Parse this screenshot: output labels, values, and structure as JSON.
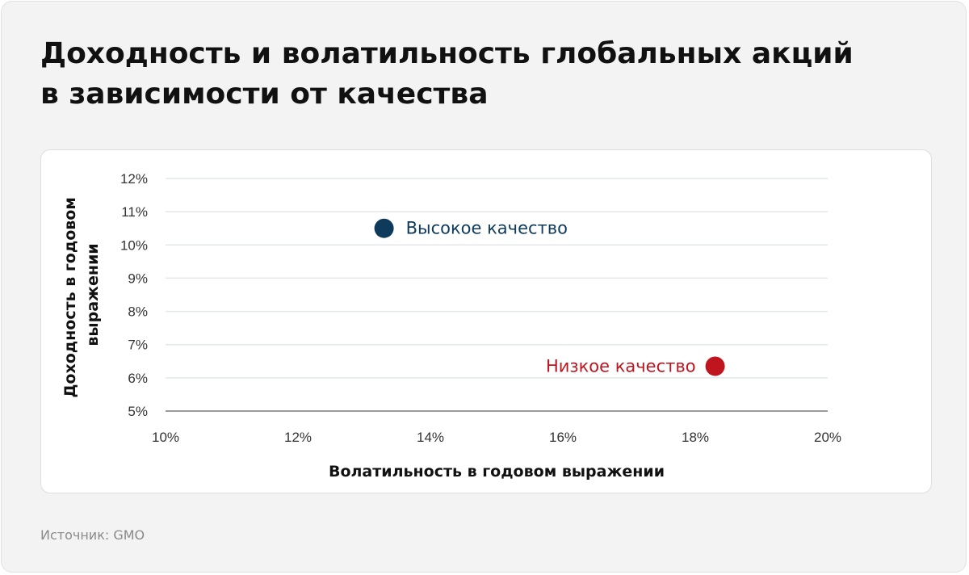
{
  "title_lines": [
    "Доходность и волатильность глобальных акций",
    "в зависимости от качества"
  ],
  "source": "Источник: GMO",
  "chart_data": {
    "type": "scatter",
    "title": "Доходность и волатильность глобальных акций в зависимости от качества",
    "xlabel": "Волатильность в годовом выражении",
    "ylabel_lines": [
      "Доходность в годовом",
      "выражении"
    ],
    "xlim": [
      10,
      20
    ],
    "ylim": [
      5,
      12
    ],
    "x_ticks": [
      10,
      12,
      14,
      16,
      18,
      20
    ],
    "y_ticks": [
      12,
      11,
      10,
      9,
      8,
      7,
      6,
      5
    ],
    "x_tick_labels": [
      "10%",
      "12%",
      "14%",
      "16%",
      "18%",
      "20%"
    ],
    "y_tick_labels": [
      "12%",
      "11%",
      "10%",
      "9%",
      "8%",
      "7%",
      "6%",
      "5%"
    ],
    "grid": true,
    "points": [
      {
        "label": "Высокое качество",
        "x": 13.3,
        "y": 10.5,
        "color": "#0e3a5c",
        "label_side": "right"
      },
      {
        "label": "Низкое качество",
        "x": 18.3,
        "y": 6.35,
        "color": "#c0151e",
        "label_side": "left"
      }
    ]
  }
}
